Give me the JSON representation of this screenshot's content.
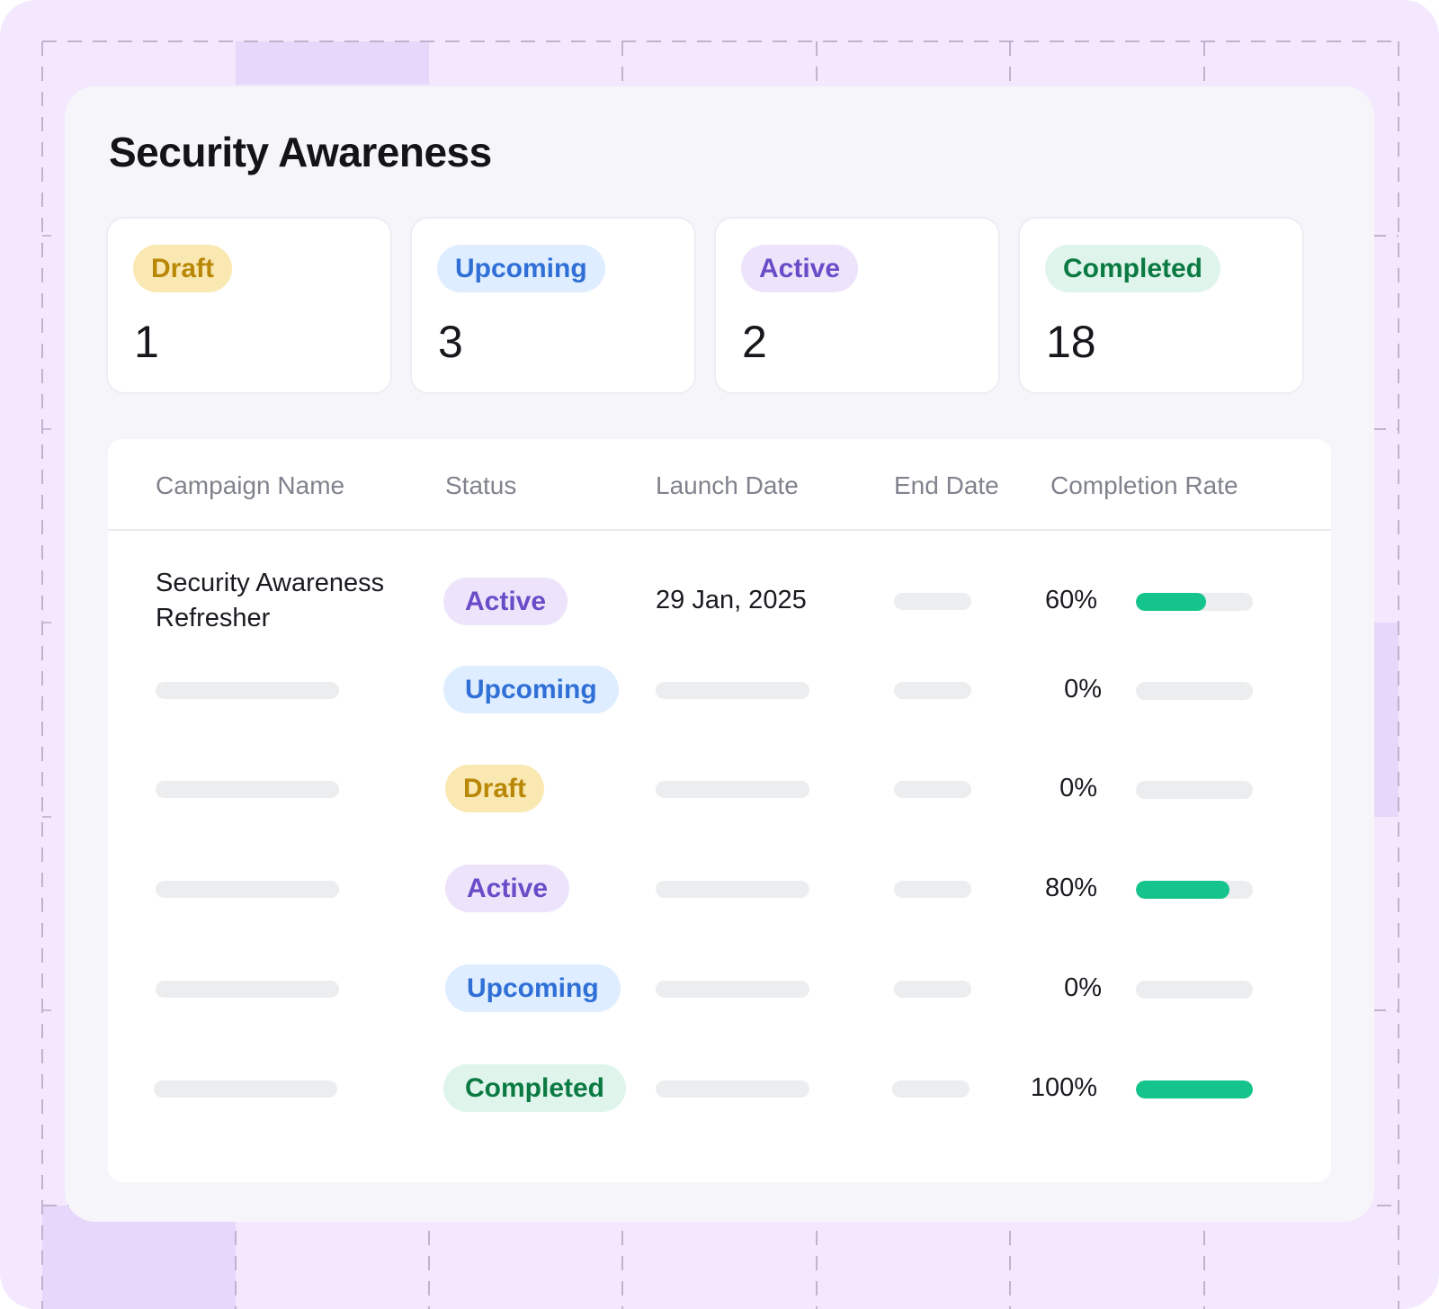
{
  "title": "Security Awareness",
  "stats": [
    {
      "label": "Draft",
      "value": "1",
      "variant": "draft"
    },
    {
      "label": "Upcoming",
      "value": "3",
      "variant": "upcoming"
    },
    {
      "label": "Active",
      "value": "2",
      "variant": "active"
    },
    {
      "label": "Completed",
      "value": "18",
      "variant": "completed"
    }
  ],
  "table": {
    "headers": {
      "name": "Campaign Name",
      "status": "Status",
      "launch": "Launch Date",
      "end": "End Date",
      "rate": "Completion Rate"
    },
    "rows": [
      {
        "name_line1": "Security Awareness",
        "name_line2": "Refresher",
        "status": "Active",
        "variant": "active",
        "launch": "29 Jan, 2025",
        "rate_label": "60%",
        "rate": 60
      },
      {
        "status": "Upcoming",
        "variant": "upcoming",
        "rate_label": "0%",
        "rate": 0
      },
      {
        "status": "Draft",
        "variant": "draft",
        "rate_label": "0%",
        "rate": 0
      },
      {
        "status": "Active",
        "variant": "active",
        "rate_label": "80%",
        "rate": 80
      },
      {
        "status": "Upcoming",
        "variant": "upcoming",
        "rate_label": "0%",
        "rate": 0
      },
      {
        "status": "Completed",
        "variant": "completed",
        "rate_label": "100%",
        "rate": 100
      }
    ]
  },
  "colors": {
    "frame": "#f3e8fd",
    "card": "#f6f6fa",
    "progress": "#14c48a",
    "draft": "#b98706",
    "upcoming": "#2f6fd6",
    "active": "#6a4cc8",
    "completed": "#0b7a42"
  }
}
